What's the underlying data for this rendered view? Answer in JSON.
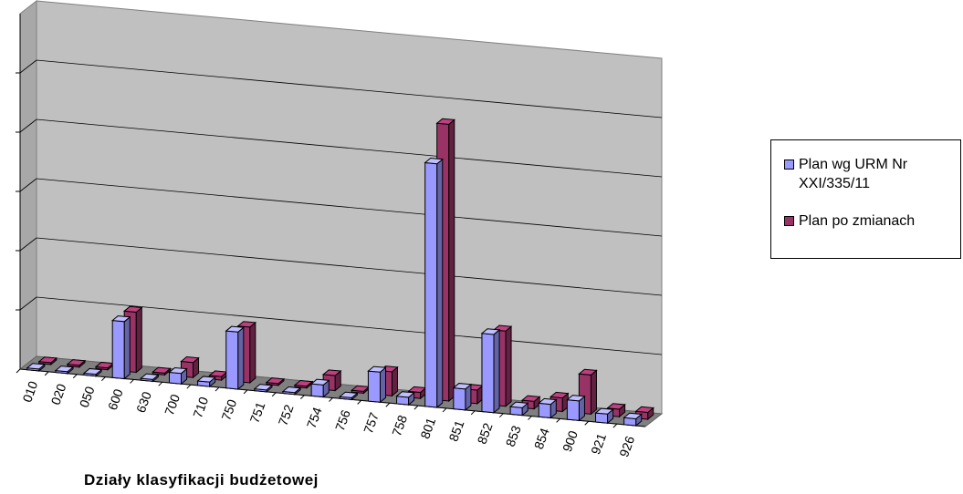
{
  "chart_data": {
    "type": "bar",
    "xlabel": "Działy klasyfikacji budżetowej",
    "ylabel": "",
    "categories": [
      "010",
      "020",
      "050",
      "600",
      "630",
      "700",
      "710",
      "750",
      "751",
      "752",
      "754",
      "756",
      "757",
      "758",
      "801",
      "851",
      "852",
      "853",
      "854",
      "900",
      "921",
      "926"
    ],
    "series": [
      {
        "name": "Plan wg URM Nr XXI/335/11",
        "color": "#9999ff",
        "values": [
          0.2,
          0.2,
          0.2,
          19,
          0.2,
          3.5,
          1.5,
          19,
          0.2,
          0.2,
          4,
          0.2,
          10,
          2.5,
          81,
          7,
          26,
          2.5,
          4.5,
          6.5,
          3,
          2.3
        ]
      },
      {
        "name": "Plan po zmianach",
        "color": "#993366",
        "values": [
          0.2,
          0.2,
          0.2,
          20,
          0.2,
          5,
          1.2,
          18.5,
          0.2,
          0.2,
          5,
          0.2,
          8,
          2,
          92,
          4.5,
          25,
          2.5,
          4.5,
          13,
          2.5,
          2.3
        ]
      }
    ],
    "ylim": [
      0,
      100
    ],
    "grid": true,
    "legend_position": "right"
  }
}
